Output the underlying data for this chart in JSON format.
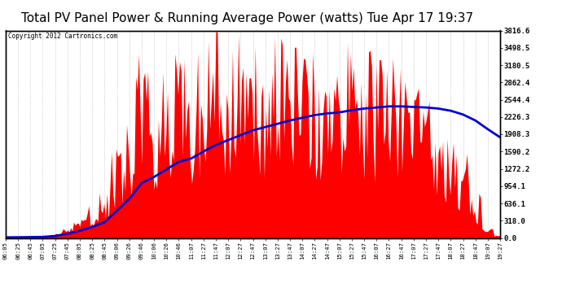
{
  "title": "Total PV Panel Power & Running Average Power (watts) Tue Apr 17 19:37",
  "copyright": "Copyright 2012 Cartronics.com",
  "ylabel_right_ticks": [
    0.0,
    318.0,
    636.1,
    954.1,
    1272.2,
    1590.2,
    1908.3,
    2226.3,
    2544.4,
    2862.4,
    3180.5,
    3498.5,
    3816.6
  ],
  "ymax": 3816.6,
  "ymin": 0.0,
  "bg_color": "#ffffff",
  "plot_bg_color": "#ffffff",
  "grid_color": "#aaaaaa",
  "bar_color": "#ff0000",
  "avg_color": "#0000cc",
  "title_fontsize": 11,
  "x_tick_labels": [
    "06:05",
    "06:25",
    "06:45",
    "07:05",
    "07:25",
    "07:45",
    "08:05",
    "08:25",
    "08:45",
    "09:06",
    "09:26",
    "09:46",
    "10:06",
    "10:26",
    "10:46",
    "11:07",
    "11:27",
    "11:47",
    "12:07",
    "12:27",
    "12:47",
    "13:07",
    "13:27",
    "13:47",
    "14:07",
    "14:27",
    "14:47",
    "15:07",
    "15:27",
    "15:47",
    "16:07",
    "16:27",
    "16:47",
    "17:07",
    "17:27",
    "17:47",
    "18:07",
    "18:27",
    "18:47",
    "19:07",
    "19:27"
  ],
  "pv_power": [
    10,
    15,
    20,
    30,
    80,
    200,
    350,
    600,
    900,
    1800,
    2200,
    3500,
    2800,
    3100,
    3400,
    2600,
    3600,
    3700,
    3500,
    3600,
    3800,
    3500,
    3700,
    3600,
    3400,
    3500,
    3300,
    3200,
    3500,
    3400,
    3200,
    3300,
    3000,
    2800,
    2600,
    2400,
    2000,
    1500,
    800,
    200,
    50
  ],
  "running_avg": [
    10,
    12,
    15,
    19,
    35,
    76,
    130,
    201,
    290,
    500,
    720,
    1010,
    1120,
    1260,
    1400,
    1460,
    1590,
    1710,
    1800,
    1890,
    1980,
    2040,
    2100,
    2160,
    2210,
    2260,
    2290,
    2310,
    2350,
    2380,
    2400,
    2420,
    2420,
    2410,
    2400,
    2380,
    2340,
    2270,
    2160,
    2000,
    1850
  ]
}
